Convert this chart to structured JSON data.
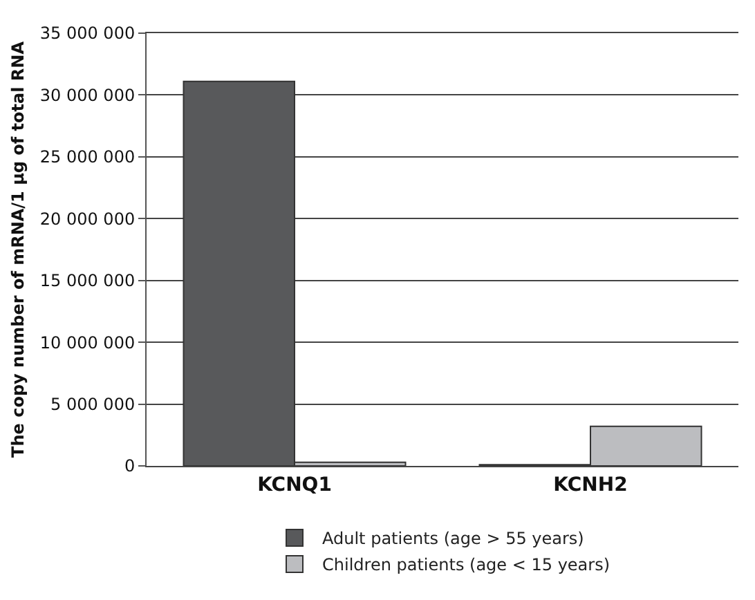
{
  "chart_data": {
    "type": "bar",
    "ylabel": "The copy number of mRNA/1 µg of total RNA",
    "categories": [
      "KCNQ1",
      "KCNH2"
    ],
    "series": [
      {
        "name": "Adult patients (age > 55 years)",
        "color": "#58595b",
        "values": [
          31100000,
          100000
        ]
      },
      {
        "name": "Children patients (age < 15 years)",
        "color": "#bcbdc0",
        "values": [
          300000,
          3200000
        ]
      }
    ],
    "ylim": [
      0,
      35000000
    ],
    "yticks": [
      {
        "value": 0,
        "label": "0"
      },
      {
        "value": 5000000,
        "label": "5 000 000"
      },
      {
        "value": 10000000,
        "label": "10 000 000"
      },
      {
        "value": 15000000,
        "label": "15 000 000"
      },
      {
        "value": 20000000,
        "label": "20 000 000"
      },
      {
        "value": 25000000,
        "label": "25 000 000"
      },
      {
        "value": 30000000,
        "label": "30 000 000"
      },
      {
        "value": 35000000,
        "label": "35 000 000"
      }
    ],
    "grid": "y",
    "legend": "bottom"
  }
}
